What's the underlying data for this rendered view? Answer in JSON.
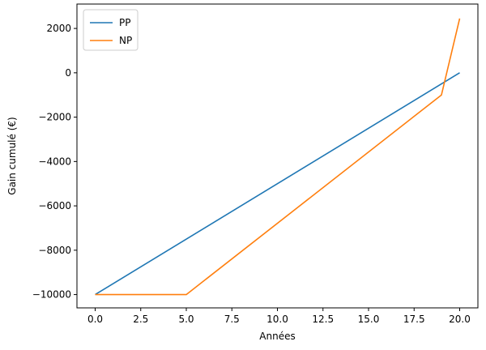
{
  "chart_data": {
    "type": "line",
    "title": "",
    "xlabel": "Années",
    "ylabel": "Gain cumulé (€)",
    "xlim": [
      -1,
      21
    ],
    "ylim": [
      -10600,
      3100
    ],
    "x_ticks": [
      0.0,
      2.5,
      5.0,
      7.5,
      10.0,
      12.5,
      15.0,
      17.5,
      20.0
    ],
    "x_tick_labels": [
      "0.0",
      "2.5",
      "5.0",
      "7.5",
      "10.0",
      "12.5",
      "15.0",
      "17.5",
      "20.0"
    ],
    "y_ticks": [
      -10000,
      -8000,
      -6000,
      -4000,
      -2000,
      0,
      2000
    ],
    "y_tick_labels": [
      "−10000",
      "−8000",
      "−6000",
      "−4000",
      "−2000",
      "0",
      "2000"
    ],
    "grid": false,
    "legend_position": "top-left",
    "series": [
      {
        "name": "PP",
        "color": "#1f77b4",
        "x": [
          0,
          20
        ],
        "y": [
          -10000,
          0
        ]
      },
      {
        "name": "NP",
        "color": "#ff7f0e",
        "x": [
          0,
          5,
          19,
          20
        ],
        "y": [
          -10000,
          -10000,
          -1000,
          2450
        ]
      }
    ]
  }
}
